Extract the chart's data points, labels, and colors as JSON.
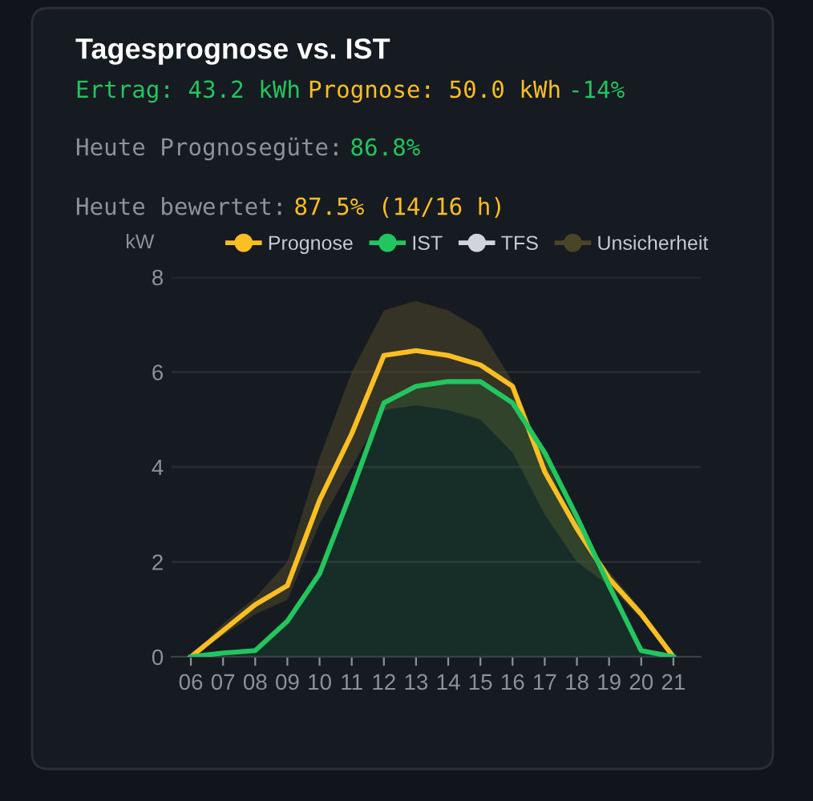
{
  "chart_data": {
    "type": "line",
    "title": "Tagesprognose vs. IST",
    "annotations": [
      "Ertrag: 43.2 kWh",
      "Prognose: 50.0 kWh",
      "-14%",
      "Heute Prognosegüte:",
      "86.8%",
      "Heute bewertet:",
      "87.5% (14/16 h)"
    ],
    "ylabel": "kW",
    "categories": [
      "06",
      "07",
      "08",
      "09",
      "10",
      "11",
      "12",
      "13",
      "14",
      "15",
      "16",
      "17",
      "18",
      "19",
      "20",
      "21"
    ],
    "series": [
      {
        "name": "Prognose",
        "color": "#fbbf24",
        "values": [
          0,
          0.55,
          1.1,
          1.5,
          3.3,
          4.7,
          6.35,
          6.45,
          6.35,
          6.15,
          5.7,
          3.9,
          2.7,
          1.65,
          0.9,
          0
        ]
      },
      {
        "name": "IST",
        "type": "area",
        "color": "#22c55e",
        "values": [
          0,
          0.08,
          0.13,
          0.75,
          1.75,
          3.5,
          5.35,
          5.7,
          5.8,
          5.8,
          5.35,
          4.3,
          2.95,
          1.5,
          0.13,
          0
        ]
      },
      {
        "name": "TFS",
        "color": "#d1d5db",
        "values": [
          null,
          null,
          null,
          null,
          null,
          null,
          null,
          null,
          null,
          null,
          null,
          null,
          null,
          null,
          null,
          null
        ]
      },
      {
        "name": "Unsicherheit",
        "type": "area",
        "color": "#4a4528",
        "values": [
          null,
          null,
          null,
          null,
          null,
          null,
          null,
          null,
          null,
          null,
          null,
          null,
          null,
          null,
          null,
          null
        ],
        "lower": [
          0,
          0.45,
          0.9,
          1.2,
          2.8,
          4.0,
          5.2,
          5.3,
          5.2,
          5.0,
          4.3,
          3.0,
          2.0,
          1.5,
          0.8,
          0
        ],
        "upper": [
          0,
          0.7,
          1.25,
          2.0,
          4.2,
          6.0,
          7.3,
          7.5,
          7.3,
          6.9,
          5.8,
          4.2,
          2.6,
          1.8,
          1.0,
          0
        ]
      }
    ],
    "ylim": [
      0,
      8
    ],
    "yticks": [
      0,
      2,
      4,
      6,
      8
    ],
    "grid": "y",
    "legend": "top",
    "marker": "none",
    "line_style": "solid"
  }
}
